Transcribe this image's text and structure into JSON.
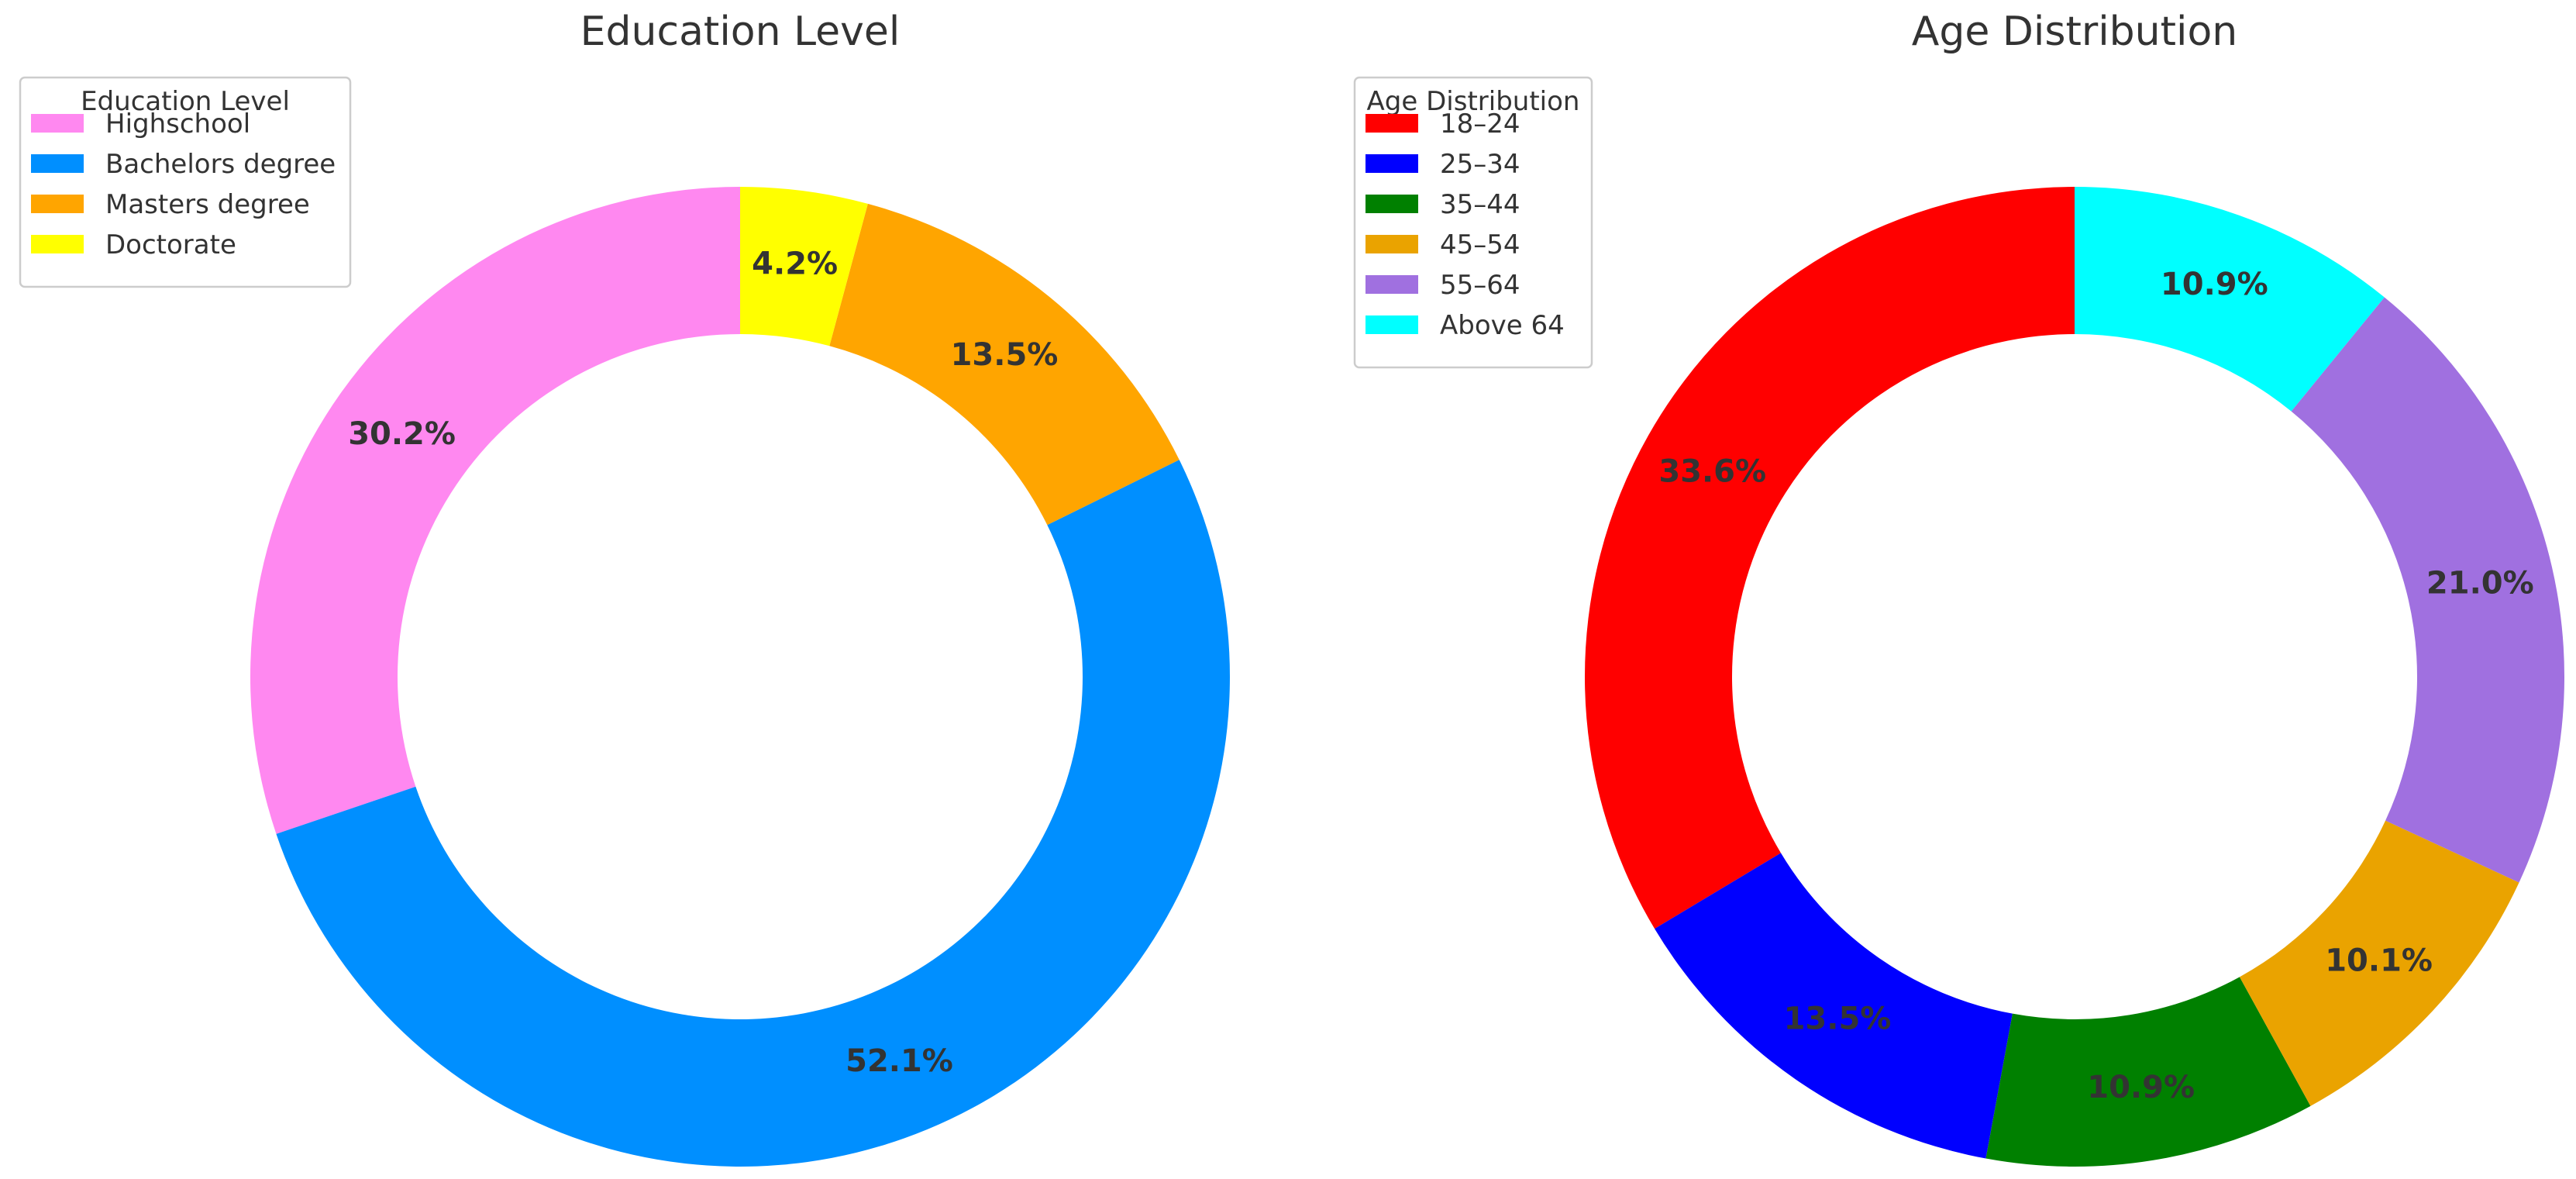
{
  "chart_data": [
    {
      "type": "pie",
      "donut": true,
      "title": "Education Level",
      "legend": {
        "title": "Education Level",
        "placement": "top-left"
      },
      "start_angle_deg": 90,
      "direction": "counterclockwise",
      "slices": [
        {
          "label": "Highschool",
          "value": 30.2,
          "value_label": "30.2%",
          "color": "#FF88F0"
        },
        {
          "label": "Bachelors degree",
          "value": 52.1,
          "value_label": "52.1%",
          "color": "#008FFF"
        },
        {
          "label": "Masters degree",
          "value": 13.5,
          "value_label": "13.5%",
          "color": "#FFA500"
        },
        {
          "label": "Doctorate",
          "value": 4.2,
          "value_label": "4.2%",
          "color": "#FFFF00"
        }
      ]
    },
    {
      "type": "pie",
      "donut": true,
      "title": "Age Distribution",
      "legend": {
        "title": "Age Distribution",
        "placement": "top-left"
      },
      "start_angle_deg": 90,
      "direction": "counterclockwise",
      "slices": [
        {
          "label": "18–24",
          "value": 33.6,
          "value_label": "33.6%",
          "color": "#FF0000"
        },
        {
          "label": "25–34",
          "value": 13.5,
          "value_label": "13.5%",
          "color": "#0000FF"
        },
        {
          "label": "35–44",
          "value": 10.9,
          "value_label": "10.9%",
          "color": "#008000"
        },
        {
          "label": "45–54",
          "value": 10.1,
          "value_label": "10.1%",
          "color": "#EAA300"
        },
        {
          "label": "55–64",
          "value": 21.0,
          "value_label": "21.0%",
          "color": "#A070E0"
        },
        {
          "label": "Above 64",
          "value": 10.9,
          "value_label": "10.9%",
          "color": "#00FFFF"
        }
      ]
    }
  ]
}
